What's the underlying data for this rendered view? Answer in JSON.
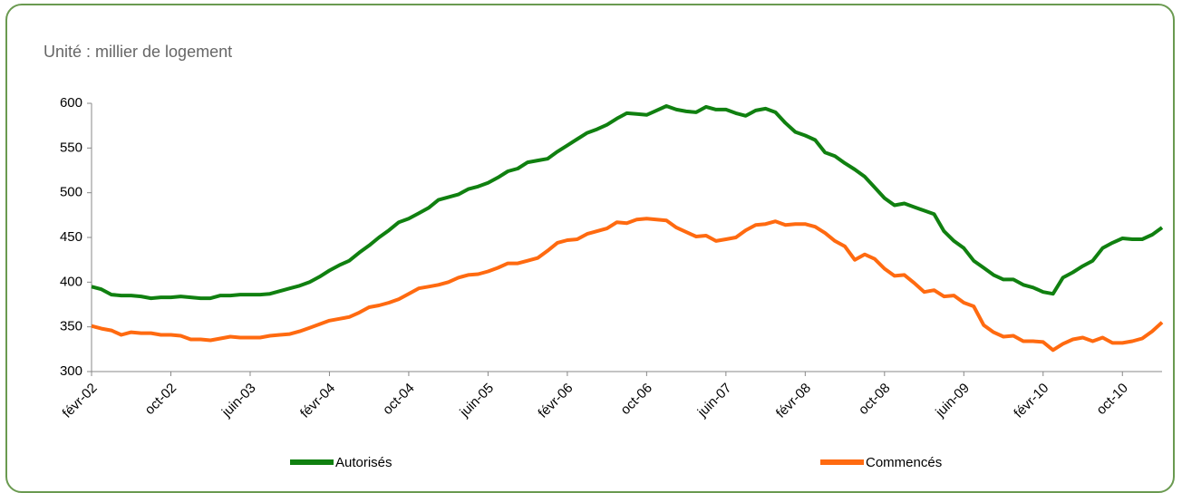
{
  "chart_data": {
    "type": "line",
    "title": "Unité : millier de logement",
    "categories": [
      "févr-02",
      null,
      null,
      null,
      null,
      null,
      null,
      null,
      "oct-02",
      null,
      null,
      null,
      null,
      null,
      null,
      null,
      "juin-03",
      null,
      null,
      null,
      null,
      null,
      null,
      null,
      "févr-04",
      null,
      null,
      null,
      null,
      null,
      null,
      null,
      "oct-04",
      null,
      null,
      null,
      null,
      null,
      null,
      null,
      "juin-05",
      null,
      null,
      null,
      null,
      null,
      null,
      null,
      "févr-06",
      null,
      null,
      null,
      null,
      null,
      null,
      null,
      "oct-06",
      null,
      null,
      null,
      null,
      null,
      null,
      null,
      "juin-07",
      null,
      null,
      null,
      null,
      null,
      null,
      null,
      "févr-08",
      null,
      null,
      null,
      null,
      null,
      null,
      null,
      "oct-08",
      null,
      null,
      null,
      null,
      null,
      null,
      null,
      "juin-09",
      null,
      null,
      null,
      null,
      null,
      null,
      null,
      "févr-10",
      null,
      null,
      null,
      null,
      null,
      null,
      null,
      "oct-10",
      null,
      null,
      null,
      null
    ],
    "series": [
      {
        "name": "Autorisés",
        "color": "#108010",
        "values": [
          395,
          392,
          386,
          385,
          385,
          384,
          382,
          383,
          383,
          384,
          383,
          382,
          382,
          385,
          385,
          386,
          386,
          386,
          387,
          390,
          393,
          396,
          400,
          406,
          413,
          419,
          424,
          433,
          441,
          450,
          458,
          467,
          471,
          477,
          483,
          492,
          495,
          498,
          504,
          507,
          511,
          517,
          524,
          527,
          534,
          536,
          538,
          546,
          553,
          560,
          567,
          571,
          576,
          583,
          589,
          588,
          587,
          592,
          597,
          593,
          591,
          590,
          596,
          593,
          593,
          589,
          586,
          592,
          594,
          590,
          578,
          568,
          564,
          559,
          545,
          541,
          533,
          526,
          518,
          506,
          494,
          486,
          488,
          484,
          480,
          476,
          457,
          446,
          438,
          424,
          416,
          408,
          403,
          403,
          397,
          394,
          389,
          387,
          405,
          411,
          418,
          424,
          438,
          444,
          449,
          448,
          448,
          453,
          461
        ]
      },
      {
        "name": "Commencés",
        "color": "#ff6a10",
        "values": [
          351,
          348,
          346,
          341,
          344,
          343,
          343,
          341,
          341,
          340,
          336,
          336,
          335,
          337,
          339,
          338,
          338,
          338,
          340,
          341,
          342,
          345,
          349,
          353,
          357,
          359,
          361,
          366,
          372,
          374,
          377,
          381,
          387,
          393,
          395,
          397,
          400,
          405,
          408,
          409,
          412,
          416,
          421,
          421,
          424,
          427,
          435,
          444,
          447,
          448,
          454,
          457,
          460,
          467,
          466,
          470,
          471,
          470,
          469,
          461,
          456,
          451,
          452,
          446,
          448,
          450,
          458,
          464,
          465,
          468,
          464,
          465,
          465,
          462,
          455,
          446,
          440,
          425,
          431,
          426,
          415,
          407,
          408,
          399,
          389,
          391,
          384,
          385,
          377,
          373,
          352,
          344,
          339,
          340,
          334,
          334,
          333,
          324,
          331,
          336,
          338,
          334,
          338,
          332,
          332,
          334,
          337,
          345,
          355
        ]
      }
    ],
    "ylim": [
      300,
      600
    ],
    "yticks": [
      300,
      350,
      400,
      450,
      500,
      550,
      600
    ]
  }
}
